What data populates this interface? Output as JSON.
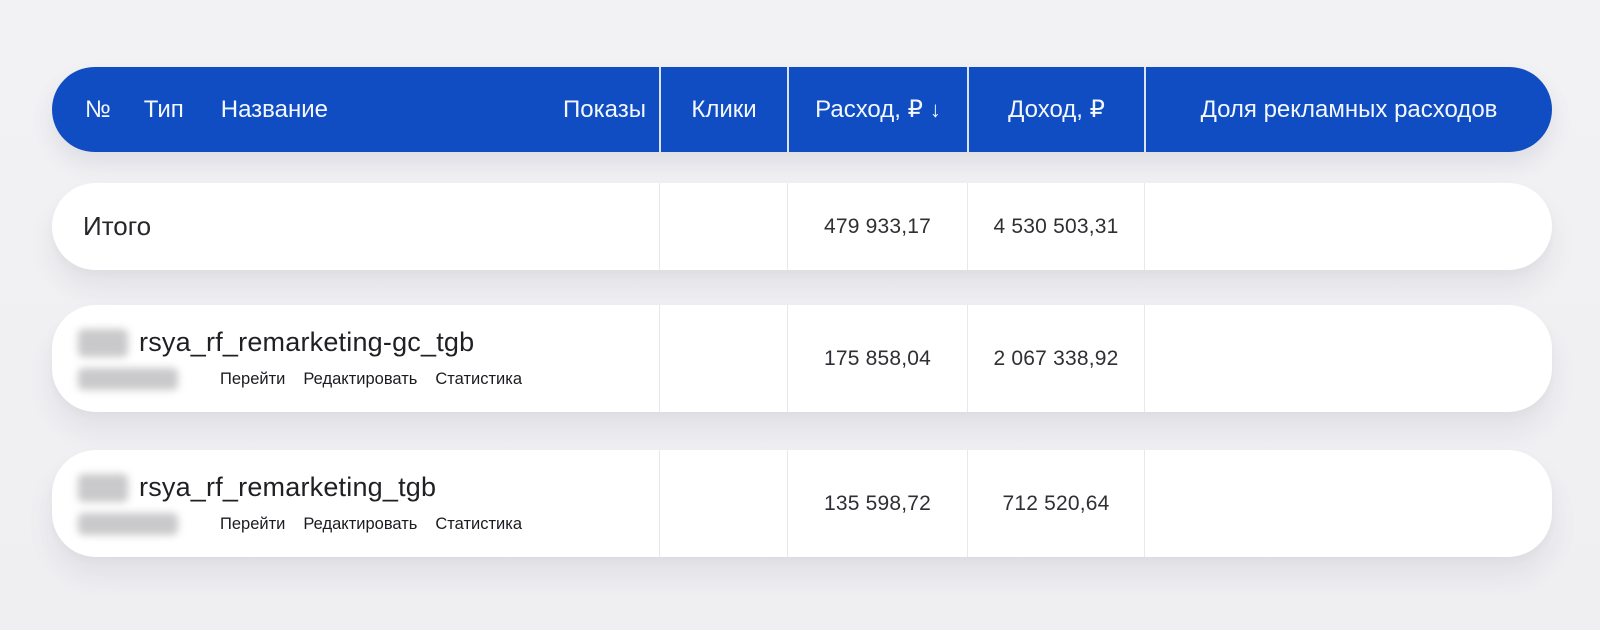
{
  "colors": {
    "header_bg": "#104dc2",
    "page_bg": "#f0f0f2",
    "card_bg": "#ffffff"
  },
  "header": {
    "num": "№",
    "type": "Тип",
    "name": "Название",
    "impressions": "Показы",
    "clicks": "Клики",
    "cost": "Расход, ₽",
    "cost_sort_icon": "↓",
    "revenue": "Доход, ₽",
    "share": "Доля рекламных расходов"
  },
  "totals": {
    "label": "Итого",
    "cost": "479 933,17",
    "revenue": "4 530 503,31"
  },
  "rows": [
    {
      "name": "rsya_rf_remarketing-gc_tgb",
      "cost": "175 858,04",
      "revenue": "2 067 338,92",
      "actions": {
        "go": "Перейти",
        "edit": "Редактировать",
        "stats": "Статистика"
      }
    },
    {
      "name": "rsya_rf_remarketing_tgb",
      "cost": "135 598,72",
      "revenue": "712 520,64",
      "actions": {
        "go": "Перейти",
        "edit": "Редактировать",
        "stats": "Статистика"
      }
    }
  ]
}
